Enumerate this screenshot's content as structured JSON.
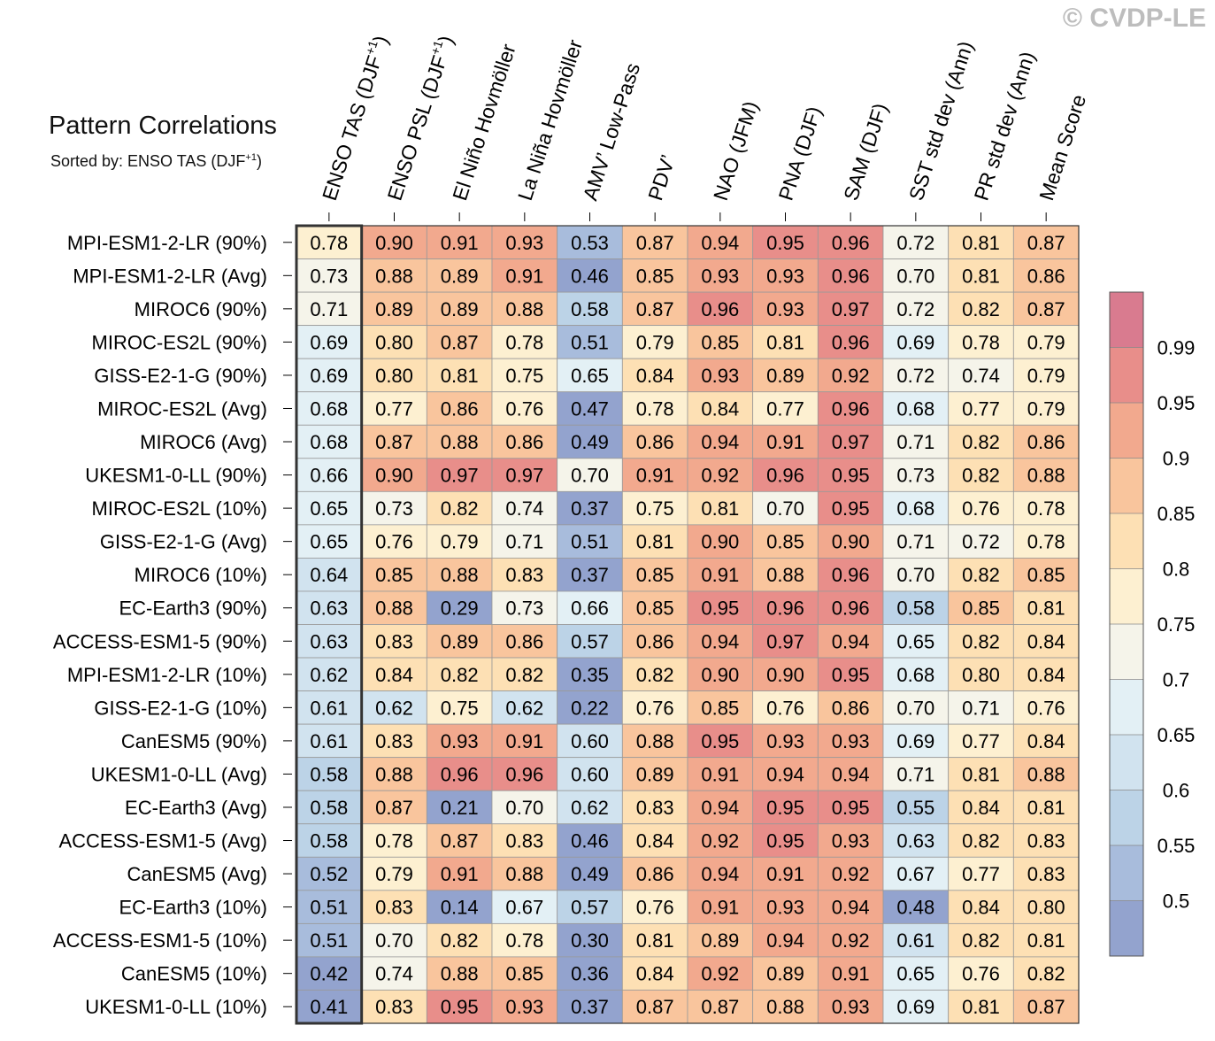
{
  "watermark": "© CVDP-LE",
  "title": "Pattern Correlations",
  "subtitle_prefix": "Sorted by: ENSO TAS (DJF",
  "subtitle_sup": "+1",
  "subtitle_suffix": ")",
  "chart_data": {
    "type": "heatmap",
    "columns": [
      {
        "label": "ENSO TAS (DJF",
        "sup": "+1",
        "suffix": ")"
      },
      {
        "label": "ENSO PSL (DJF",
        "sup": "+1",
        "suffix": ")"
      },
      {
        "label": "El Niño Hovmöller"
      },
      {
        "label": "La Niña Hovmöller"
      },
      {
        "label": "AMV’ Low-Pass"
      },
      {
        "label": "PDV’"
      },
      {
        "label": "NAO (JFM)"
      },
      {
        "label": "PNA (DJF)"
      },
      {
        "label": "SAM (DJF)"
      },
      {
        "label": "SST std dev (Ann)"
      },
      {
        "label": "PR std dev (Ann)"
      },
      {
        "label": "Mean Score"
      }
    ],
    "rows": [
      "MPI-ESM1-2-LR (90%)",
      "MPI-ESM1-2-LR (Avg)",
      "MIROC6 (90%)",
      "MIROC-ES2L (90%)",
      "GISS-E2-1-G (90%)",
      "MIROC-ES2L (Avg)",
      "MIROC6 (Avg)",
      "UKESM1-0-LL (90%)",
      "MIROC-ES2L (10%)",
      "GISS-E2-1-G (Avg)",
      "MIROC6 (10%)",
      "EC-Earth3 (90%)",
      "ACCESS-ESM1-5 (90%)",
      "MPI-ESM1-2-LR (10%)",
      "GISS-E2-1-G (10%)",
      "CanESM5 (90%)",
      "UKESM1-0-LL (Avg)",
      "EC-Earth3 (Avg)",
      "ACCESS-ESM1-5 (Avg)",
      "CanESM5 (Avg)",
      "EC-Earth3 (10%)",
      "ACCESS-ESM1-5 (10%)",
      "CanESM5 (10%)",
      "UKESM1-0-LL (10%)"
    ],
    "values": [
      [
        0.78,
        0.9,
        0.91,
        0.93,
        0.53,
        0.87,
        0.94,
        0.95,
        0.96,
        0.72,
        0.81,
        0.87
      ],
      [
        0.73,
        0.88,
        0.89,
        0.91,
        0.46,
        0.85,
        0.93,
        0.93,
        0.96,
        0.7,
        0.81,
        0.86
      ],
      [
        0.71,
        0.89,
        0.89,
        0.88,
        0.58,
        0.87,
        0.96,
        0.93,
        0.97,
        0.72,
        0.82,
        0.87
      ],
      [
        0.69,
        0.8,
        0.87,
        0.78,
        0.51,
        0.79,
        0.85,
        0.81,
        0.96,
        0.69,
        0.78,
        0.79
      ],
      [
        0.69,
        0.8,
        0.81,
        0.75,
        0.65,
        0.84,
        0.93,
        0.89,
        0.92,
        0.72,
        0.74,
        0.79
      ],
      [
        0.68,
        0.77,
        0.86,
        0.76,
        0.47,
        0.78,
        0.84,
        0.77,
        0.96,
        0.68,
        0.77,
        0.79
      ],
      [
        0.68,
        0.87,
        0.88,
        0.86,
        0.49,
        0.86,
        0.94,
        0.91,
        0.97,
        0.71,
        0.82,
        0.86
      ],
      [
        0.66,
        0.9,
        0.97,
        0.97,
        0.7,
        0.91,
        0.92,
        0.96,
        0.95,
        0.73,
        0.82,
        0.88
      ],
      [
        0.65,
        0.73,
        0.82,
        0.74,
        0.37,
        0.75,
        0.81,
        0.7,
        0.95,
        0.68,
        0.76,
        0.78
      ],
      [
        0.65,
        0.76,
        0.79,
        0.71,
        0.51,
        0.81,
        0.9,
        0.85,
        0.9,
        0.71,
        0.72,
        0.78
      ],
      [
        0.64,
        0.85,
        0.88,
        0.83,
        0.37,
        0.85,
        0.91,
        0.88,
        0.96,
        0.7,
        0.82,
        0.85
      ],
      [
        0.63,
        0.88,
        0.29,
        0.73,
        0.66,
        0.85,
        0.95,
        0.96,
        0.96,
        0.58,
        0.85,
        0.81
      ],
      [
        0.63,
        0.83,
        0.89,
        0.86,
        0.57,
        0.86,
        0.94,
        0.97,
        0.94,
        0.65,
        0.82,
        0.84
      ],
      [
        0.62,
        0.84,
        0.82,
        0.82,
        0.35,
        0.82,
        0.9,
        0.9,
        0.95,
        0.68,
        0.8,
        0.84
      ],
      [
        0.61,
        0.62,
        0.75,
        0.62,
        0.22,
        0.76,
        0.85,
        0.76,
        0.86,
        0.7,
        0.71,
        0.76
      ],
      [
        0.61,
        0.83,
        0.93,
        0.91,
        0.6,
        0.88,
        0.95,
        0.93,
        0.93,
        0.69,
        0.77,
        0.84
      ],
      [
        0.58,
        0.88,
        0.96,
        0.96,
        0.6,
        0.89,
        0.91,
        0.94,
        0.94,
        0.71,
        0.81,
        0.88
      ],
      [
        0.58,
        0.87,
        0.21,
        0.7,
        0.62,
        0.83,
        0.94,
        0.95,
        0.95,
        0.55,
        0.84,
        0.81
      ],
      [
        0.58,
        0.78,
        0.87,
        0.83,
        0.46,
        0.84,
        0.92,
        0.95,
        0.93,
        0.63,
        0.82,
        0.83
      ],
      [
        0.52,
        0.79,
        0.91,
        0.88,
        0.49,
        0.86,
        0.94,
        0.91,
        0.92,
        0.67,
        0.77,
        0.83
      ],
      [
        0.51,
        0.83,
        0.14,
        0.67,
        0.57,
        0.76,
        0.91,
        0.93,
        0.94,
        0.48,
        0.84,
        0.8
      ],
      [
        0.51,
        0.7,
        0.82,
        0.78,
        0.3,
        0.81,
        0.89,
        0.94,
        0.92,
        0.61,
        0.82,
        0.81
      ],
      [
        0.42,
        0.74,
        0.88,
        0.85,
        0.36,
        0.84,
        0.92,
        0.89,
        0.91,
        0.65,
        0.76,
        0.82
      ],
      [
        0.41,
        0.83,
        0.95,
        0.93,
        0.37,
        0.87,
        0.87,
        0.88,
        0.93,
        0.69,
        0.81,
        0.87
      ]
    ],
    "sorted_column": 0,
    "colorbar": {
      "levels": [
        0.5,
        0.55,
        0.6,
        0.65,
        0.7,
        0.75,
        0.8,
        0.85,
        0.9,
        0.95,
        0.99
      ],
      "tick_labels": [
        "0.5",
        "0.55",
        "0.6",
        "0.65",
        "0.7",
        "0.75",
        "0.8",
        "0.85",
        "0.9",
        "0.95",
        "0.99"
      ],
      "colors": [
        "#93a3ce",
        "#a8bcdc",
        "#bcd3e7",
        "#d1e3ef",
        "#e3f0f5",
        "#f5f4ea",
        "#fdf0d1",
        "#fde0b4",
        "#f9c59d",
        "#f2a98e",
        "#e88e8a",
        "#d97b8f"
      ]
    }
  }
}
